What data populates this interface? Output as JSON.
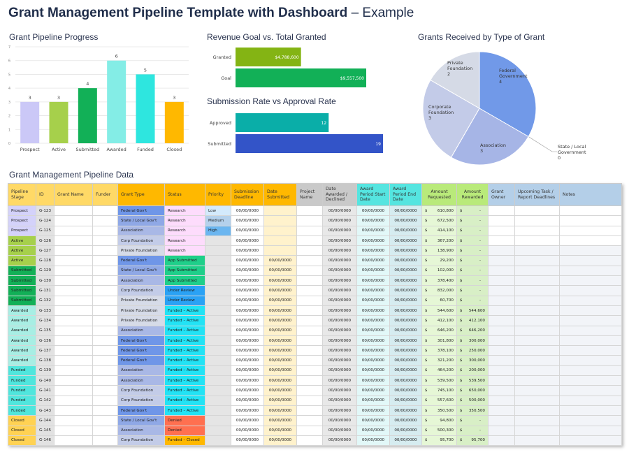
{
  "title": {
    "bold": "Grant Management Pipeline Template with Dashboard",
    "rest": " – Example"
  },
  "pipeline_chart": {
    "title": "Grant Pipeline Progress"
  },
  "revenue_chart": {
    "title": "Revenue Goal vs. Total Granted"
  },
  "rate_chart": {
    "title": "Submission Rate vs Approval Rate"
  },
  "pie_chart": {
    "title": "Grants Received by Type of Grant"
  },
  "table_title": "Grant Management Pipeline Data",
  "chart_data": [
    {
      "type": "bar",
      "title": "Grant Pipeline Progress",
      "categories": [
        "Prospect",
        "Active",
        "Submitted",
        "Awarded",
        "Funded",
        "Closed"
      ],
      "values": [
        3,
        3,
        4,
        6,
        5,
        3
      ],
      "ylim": [
        0,
        7
      ],
      "yticks": [
        0,
        1,
        2,
        3,
        4,
        5,
        6,
        7
      ],
      "grid": true,
      "colors": [
        "#cbc8f7",
        "#a6d04b",
        "#12b057",
        "#84ede6",
        "#2ee6df",
        "#ffb800"
      ]
    },
    {
      "type": "bar",
      "orientation": "horizontal",
      "title": "Revenue Goal vs. Total Granted",
      "categories": [
        "Granted",
        "Goal"
      ],
      "values": [
        4788600,
        9557500
      ],
      "labels": [
        "$4,788,600",
        "$9,557,500"
      ],
      "colors": [
        "#84b414",
        "#12b057"
      ]
    },
    {
      "type": "bar",
      "orientation": "horizontal",
      "title": "Submission Rate vs Approval Rate",
      "categories": [
        "Approved",
        "Submitted"
      ],
      "values": [
        12,
        19
      ],
      "labels": [
        "12",
        "19"
      ],
      "colors": [
        "#0aaea8",
        "#3354c8"
      ]
    },
    {
      "type": "pie",
      "title": "Grants Received by Type of Grant",
      "categories": [
        "Federal Government",
        "State / Local Government",
        "Association",
        "Corporate Foundation",
        "Private Foundation"
      ],
      "values": [
        4,
        0,
        3,
        3,
        2
      ],
      "colors": [
        "#7199e8",
        "#8fa8e6",
        "#a6b5e6",
        "#c3cbe8",
        "#d5dae6"
      ]
    }
  ],
  "table": {
    "headers": [
      "Pipeline Stage",
      "ID",
      "Grant Name",
      "Funder",
      "Grant Type",
      "Status",
      "Priority",
      "Submission Deadline",
      "Date Submitted",
      "Project Name",
      "Date Awarded / Declined",
      "Award Period Start Date",
      "Award Period End Date",
      "Amount Requested",
      "Amount Rewarded",
      "Grant Owner",
      "Upcoming Task / Report Deadlines",
      "Notes"
    ],
    "header_colors": [
      "#ffd966",
      "#ffd966",
      "#ffd966",
      "#ffd966",
      "#ffb800",
      "#ffb800",
      "#ffb800",
      "#ffb800",
      "#ffb800",
      "#c9c9c9",
      "#c9c9c9",
      "#55e5e0",
      "#55e5e0",
      "#b9ea7a",
      "#b9ea7a",
      "#b4cfe8",
      "#b4cfe8",
      "#b4cfe8"
    ],
    "stage_colors": {
      "Prospect": "#d4d2fa",
      "Active": "#a6d04b",
      "Submitted": "#12b057",
      "Awarded": "#a8eee4",
      "Funded": "#50e6dd",
      "Closed": "#ffd253"
    },
    "type_colors": {
      "Federal Gov't": "#6f96e8",
      "State / Local Gov't": "#8fa8e6",
      "Association": "#a9b8e6",
      "Corp Foundation": "#c3cce8",
      "Private Foundation": "#d6dbe8"
    },
    "status_colors": {
      "Research": "#fddcfc",
      "App Submitted": "#1fcf8a",
      "Under Review": "#2aa2f5",
      "Funded – Active": "#22e3f5",
      "Denied": "#ff7050",
      "Funded – Closed": "#ffb800"
    },
    "priority_colors": {
      "Low": "#d3eafc",
      "Medium": "#b4d1ec",
      "High": "#6bb6f0",
      "": "#e5e5e5"
    },
    "currency": "$",
    "rows": [
      [
        "Prospect",
        "G-123",
        "Federal Gov't",
        "Research",
        "Low",
        "00/00/0000",
        "",
        "00/00/0000",
        "00/00/0000",
        "00/00/0000",
        "610,800",
        "-"
      ],
      [
        "Prospect",
        "G-124",
        "State / Local Gov't",
        "Research",
        "Medium",
        "00/00/0000",
        "",
        "00/00/0000",
        "00/00/0000",
        "00/00/0000",
        "672,500",
        "-"
      ],
      [
        "Prospect",
        "G-125",
        "Association",
        "Research",
        "High",
        "00/00/0000",
        "",
        "00/00/0000",
        "00/00/0000",
        "00/00/0000",
        "414,100",
        "-"
      ],
      [
        "Active",
        "G-126",
        "Corp Foundation",
        "Research",
        "",
        "00/00/0000",
        "",
        "00/00/0000",
        "00/00/0000",
        "00/00/0000",
        "367,200",
        "-"
      ],
      [
        "Active",
        "G-127",
        "Private Foundation",
        "Research",
        "",
        "00/00/0000",
        "",
        "00/00/0000",
        "00/00/0000",
        "00/00/0000",
        "138,900",
        "-"
      ],
      [
        "Active",
        "G-128",
        "Federal Gov't",
        "App Submitted",
        "",
        "00/00/0000",
        "00/00/0000",
        "00/00/0000",
        "00/00/0000",
        "00/00/0000",
        "29,200",
        "-"
      ],
      [
        "Submitted",
        "G-129",
        "State / Local Gov't",
        "App Submitted",
        "",
        "00/00/0000",
        "00/00/0000",
        "00/00/0000",
        "00/00/0000",
        "00/00/0000",
        "102,000",
        "-"
      ],
      [
        "Submitted",
        "G-130",
        "Association",
        "App Submitted",
        "",
        "00/00/0000",
        "00/00/0000",
        "00/00/0000",
        "00/00/0000",
        "00/00/0000",
        "378,400",
        "-"
      ],
      [
        "Submitted",
        "G-131",
        "Corp Foundation",
        "Under Review",
        "",
        "00/00/0000",
        "00/00/0000",
        "00/00/0000",
        "00/00/0000",
        "00/00/0000",
        "832,000",
        "-"
      ],
      [
        "Submitted",
        "G-132",
        "Private Foundation",
        "Under Review",
        "",
        "00/00/0000",
        "00/00/0000",
        "00/00/0000",
        "00/00/0000",
        "00/00/0000",
        "60,700",
        "-"
      ],
      [
        "Awarded",
        "G-133",
        "Private Foundation",
        "Funded – Active",
        "",
        "00/00/0000",
        "00/00/0000",
        "00/00/0000",
        "00/00/0000",
        "00/00/0000",
        "544,600",
        "544,600"
      ],
      [
        "Awarded",
        "G-134",
        "Private Foundation",
        "Funded – Active",
        "",
        "00/00/0000",
        "00/00/0000",
        "00/00/0000",
        "00/00/0000",
        "00/00/0000",
        "412,100",
        "412,100"
      ],
      [
        "Awarded",
        "G-135",
        "Association",
        "Funded – Active",
        "",
        "00/00/0000",
        "00/00/0000",
        "00/00/0000",
        "00/00/0000",
        "00/00/0000",
        "646,200",
        "646,200"
      ],
      [
        "Awarded",
        "G-136",
        "Federal Gov't",
        "Funded – Active",
        "",
        "00/00/0000",
        "00/00/0000",
        "00/00/0000",
        "00/00/0000",
        "00/00/0000",
        "301,800",
        "300,000"
      ],
      [
        "Awarded",
        "G-137",
        "Federal Gov't",
        "Funded – Active",
        "",
        "00/00/0000",
        "00/00/0000",
        "00/00/0000",
        "00/00/0000",
        "00/00/0000",
        "378,100",
        "250,000"
      ],
      [
        "Awarded",
        "G-138",
        "Federal Gov't",
        "Funded – Active",
        "",
        "00/00/0000",
        "00/00/0000",
        "00/00/0000",
        "00/00/0000",
        "00/00/0000",
        "321,200",
        "300,000"
      ],
      [
        "Funded",
        "G-139",
        "Association",
        "Funded – Active",
        "",
        "00/00/0000",
        "00/00/0000",
        "00/00/0000",
        "00/00/0000",
        "00/00/0000",
        "464,200",
        "200,000"
      ],
      [
        "Funded",
        "G-140",
        "Association",
        "Funded – Active",
        "",
        "00/00/0000",
        "00/00/0000",
        "00/00/0000",
        "00/00/0000",
        "00/00/0000",
        "539,500",
        "539,500"
      ],
      [
        "Funded",
        "G-141",
        "Corp Foundation",
        "Funded – Active",
        "",
        "00/00/0000",
        "00/00/0000",
        "00/00/0000",
        "00/00/0000",
        "00/00/0000",
        "745,100",
        "650,000"
      ],
      [
        "Funded",
        "G-142",
        "Corp Foundation",
        "Funded – Active",
        "",
        "00/00/0000",
        "00/00/0000",
        "00/00/0000",
        "00/00/0000",
        "00/00/0000",
        "557,600",
        "500,000"
      ],
      [
        "Funded",
        "G-143",
        "Federal Gov't",
        "Funded – Active",
        "",
        "00/00/0000",
        "00/00/0000",
        "00/00/0000",
        "00/00/0000",
        "00/00/0000",
        "350,500",
        "350,500"
      ],
      [
        "Closed",
        "G-144",
        "State / Local Gov't",
        "Denied",
        "",
        "00/00/0000",
        "00/00/0000",
        "00/00/0000",
        "00/00/0000",
        "00/00/0000",
        "94,800",
        "-"
      ],
      [
        "Closed",
        "G-145",
        "Association",
        "Denied",
        "",
        "00/00/0000",
        "00/00/0000",
        "00/00/0000",
        "00/00/0000",
        "00/00/0000",
        "500,300",
        "-"
      ],
      [
        "Closed",
        "G-146",
        "Corp Foundation",
        "Funded – Closed",
        "",
        "00/00/0000",
        "00/00/0000",
        "00/00/0000",
        "00/00/0000",
        "00/00/0000",
        "95,700",
        "95,700"
      ]
    ]
  }
}
